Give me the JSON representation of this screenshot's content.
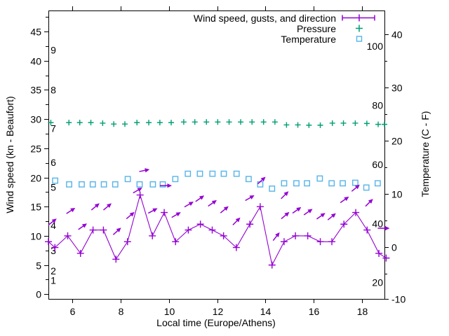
{
  "window": {
    "background": "#ffffff",
    "text_color": "#000000"
  },
  "legend": {
    "entries": [
      {
        "label": "Wind speed, gusts, and direction",
        "sample": "errorbar-line-plus",
        "series_index": 0
      },
      {
        "label": "Pressure",
        "sample": "plus",
        "series_index": 2
      },
      {
        "label": "Temperature",
        "sample": "open-square",
        "series_index": 3
      }
    ]
  },
  "axes": {
    "x": {
      "label": "Local time (Europe/Athens)",
      "range_hours": [
        5,
        18.93
      ],
      "major_ticks": [
        "6",
        "8",
        "10",
        "12",
        "14",
        "16",
        "18"
      ]
    },
    "y_left": {
      "label": "Wind speed (kn - Beaufort)",
      "range_kn": [
        -0.8,
        48.6
      ],
      "major_ticks": [
        "0",
        "5",
        "10",
        "15",
        "20",
        "25",
        "30",
        "35",
        "40",
        "45"
      ],
      "minor_tick_step": 2.5,
      "beaufort_labels": [
        {
          "text": "1",
          "kn": 2.4
        },
        {
          "text": "2",
          "kn": 4.0
        },
        {
          "text": "3",
          "kn": 7.5
        },
        {
          "text": "4",
          "kn": 11.8
        },
        {
          "text": "5",
          "kn": 18.3
        },
        {
          "text": "6",
          "kn": 22.6
        },
        {
          "text": "7",
          "kn": 28.4
        },
        {
          "text": "8",
          "kn": 35.0
        },
        {
          "text": "9",
          "kn": 41.8
        }
      ]
    },
    "y_right": {
      "label": "Temperature (C - F)",
      "range_c": [
        -9.74,
        44.5
      ],
      "major_ticks": [
        "-10",
        "0",
        "10",
        "20",
        "30",
        "40"
      ],
      "minor_tick_step": 5,
      "fahrenheit_labels": [
        "20",
        "40",
        "60",
        "80",
        "100"
      ]
    }
  },
  "chart_data": {
    "type": "line",
    "title": "",
    "xlabel": "Local time (Europe/Athens)",
    "ylabel_left": "Wind speed (kn - Beaufort)",
    "ylabel_right": "Temperature (C - F)",
    "x_range": [
      5,
      18.93
    ],
    "grid": false,
    "legend_position": "top-right-inside",
    "series": [
      {
        "name": "Wind speed, gusts, and direction",
        "style": "line+plus",
        "axis": "left",
        "color": "#9400d3",
        "points": [
          [
            5.0,
            9
          ],
          [
            5.27,
            8
          ],
          [
            5.8,
            10
          ],
          [
            6.33,
            7
          ],
          [
            6.85,
            11
          ],
          [
            7.28,
            11
          ],
          [
            7.8,
            6
          ],
          [
            8.28,
            9
          ],
          [
            8.8,
            17
          ],
          [
            9.31,
            10
          ],
          [
            9.8,
            14
          ],
          [
            10.27,
            9
          ],
          [
            10.8,
            11
          ],
          [
            11.3,
            12
          ],
          [
            11.79,
            11
          ],
          [
            12.26,
            10
          ],
          [
            12.79,
            8
          ],
          [
            13.35,
            12
          ],
          [
            13.78,
            15
          ],
          [
            14.27,
            5
          ],
          [
            14.77,
            9
          ],
          [
            15.24,
            10
          ],
          [
            15.75,
            10
          ],
          [
            16.27,
            9
          ],
          [
            16.75,
            9
          ],
          [
            17.25,
            12
          ],
          [
            17.74,
            14
          ],
          [
            18.21,
            11
          ],
          [
            18.7,
            7
          ],
          [
            19.0,
            6.2
          ]
        ]
      },
      {
        "name": "Wind direction",
        "style": "arrows",
        "axis": "left",
        "color": "#9400d3",
        "arrows": [
          [
            5.17,
            12.4,
            38
          ],
          [
            5.93,
            14.3,
            33
          ],
          [
            6.42,
            11.6,
            35
          ],
          [
            6.95,
            15.0,
            40
          ],
          [
            7.45,
            15.0,
            40
          ],
          [
            7.85,
            10.8,
            42
          ],
          [
            8.4,
            13.5,
            40
          ],
          [
            8.7,
            17.8,
            30
          ],
          [
            8.98,
            21.2,
            12
          ],
          [
            9.33,
            14.3,
            28
          ],
          [
            9.87,
            18.6,
            0
          ],
          [
            10.3,
            13.6,
            30
          ],
          [
            10.83,
            15.4,
            30
          ],
          [
            11.28,
            16.4,
            35
          ],
          [
            11.8,
            15.6,
            35
          ],
          [
            12.3,
            14.5,
            40
          ],
          [
            12.8,
            12.5,
            45
          ],
          [
            13.35,
            16.5,
            30
          ],
          [
            13.84,
            19.5,
            42
          ],
          [
            14.45,
            9.9,
            52
          ],
          [
            14.8,
            17.0,
            45
          ],
          [
            14.82,
            13.5,
            40
          ],
          [
            15.3,
            14.4,
            35
          ],
          [
            15.77,
            14.1,
            35
          ],
          [
            16.3,
            13.4,
            35
          ],
          [
            16.75,
            13.3,
            40
          ],
          [
            17.28,
            16.2,
            35
          ],
          [
            17.74,
            18.2,
            40
          ],
          [
            18.3,
            15.7,
            45
          ],
          [
            18.9,
            11.3,
            0
          ]
        ]
      },
      {
        "name": "Pressure",
        "style": "plus",
        "axis": "left",
        "color": "#009e73",
        "points": [
          [
            5.1,
            29.4
          ],
          [
            5.85,
            29.4
          ],
          [
            6.3,
            29.4
          ],
          [
            6.76,
            29.4
          ],
          [
            7.25,
            29.3
          ],
          [
            7.71,
            29.15
          ],
          [
            8.17,
            29.15
          ],
          [
            8.67,
            29.4
          ],
          [
            9.16,
            29.4
          ],
          [
            9.62,
            29.4
          ],
          [
            10.09,
            29.4
          ],
          [
            10.61,
            29.5
          ],
          [
            11.07,
            29.5
          ],
          [
            11.55,
            29.5
          ],
          [
            12.02,
            29.5
          ],
          [
            12.49,
            29.5
          ],
          [
            12.97,
            29.5
          ],
          [
            13.44,
            29.5
          ],
          [
            13.92,
            29.5
          ],
          [
            14.39,
            29.5
          ],
          [
            14.87,
            29.0
          ],
          [
            15.34,
            29.0
          ],
          [
            15.8,
            28.95
          ],
          [
            16.27,
            28.95
          ],
          [
            16.77,
            29.3
          ],
          [
            17.23,
            29.3
          ],
          [
            17.72,
            29.3
          ],
          [
            18.2,
            29.25
          ],
          [
            18.67,
            29.1
          ],
          [
            18.93,
            29.1
          ]
        ]
      },
      {
        "name": "Temperature",
        "style": "open-square",
        "axis": "right",
        "color": "#56b4e9",
        "points": [
          [
            5.28,
            12.5
          ],
          [
            5.86,
            11.8
          ],
          [
            6.38,
            11.8
          ],
          [
            6.84,
            11.8
          ],
          [
            7.3,
            11.8
          ],
          [
            7.77,
            11.8
          ],
          [
            8.29,
            12.8
          ],
          [
            8.78,
            11.8
          ],
          [
            9.33,
            11.8
          ],
          [
            9.74,
            11.8
          ],
          [
            10.26,
            12.8
          ],
          [
            10.78,
            13.8
          ],
          [
            11.28,
            13.8
          ],
          [
            11.8,
            13.8
          ],
          [
            12.27,
            13.8
          ],
          [
            12.8,
            13.8
          ],
          [
            13.3,
            12.8
          ],
          [
            13.78,
            11.8
          ],
          [
            14.27,
            11.0
          ],
          [
            14.77,
            12.0
          ],
          [
            15.28,
            12.0
          ],
          [
            15.72,
            12.0
          ],
          [
            16.25,
            12.9
          ],
          [
            16.74,
            12.0
          ],
          [
            17.2,
            12.0
          ],
          [
            17.72,
            12.1
          ],
          [
            18.18,
            11.2
          ],
          [
            18.65,
            12.0
          ]
        ]
      }
    ]
  }
}
